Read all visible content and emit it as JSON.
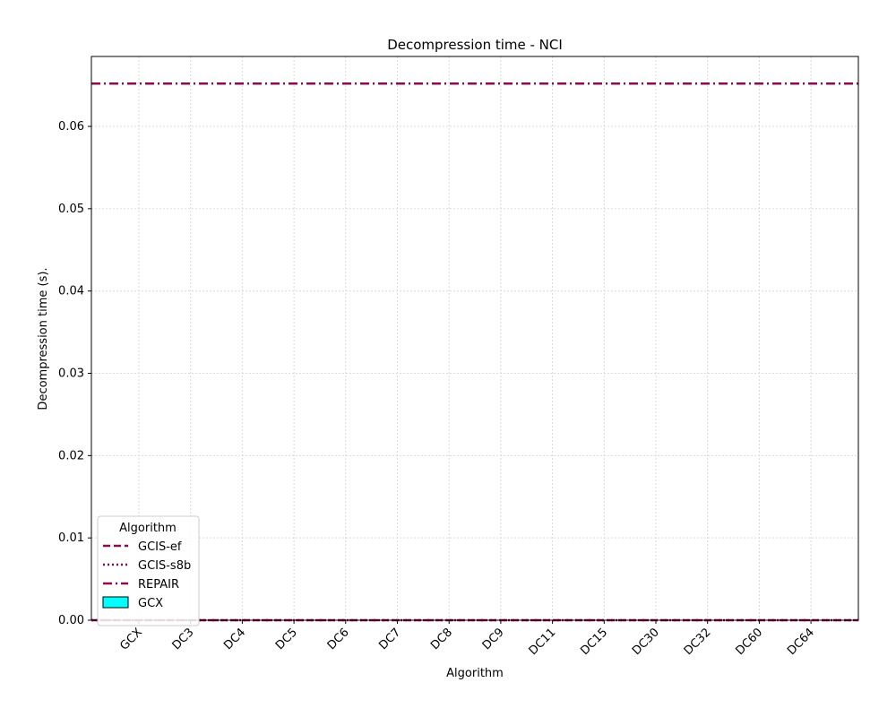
{
  "chart_data": {
    "type": "bar",
    "title": "Decompression time -  NCI",
    "xlabel": "Algorithm",
    "ylabel": "Decompression time (s).",
    "categories": [
      "GCX",
      "DC3",
      "DC4",
      "DC5",
      "DC6",
      "DC7",
      "DC8",
      "DC9",
      "DC11",
      "DC15",
      "DC30",
      "DC32",
      "DC60",
      "DC64"
    ],
    "series": [
      {
        "name": "GCX",
        "values": [
          0,
          0,
          0,
          0,
          0,
          0,
          0,
          0,
          0,
          0,
          0,
          0,
          0,
          0
        ],
        "color": "#00ffff"
      }
    ],
    "reference_lines": [
      {
        "name": "GCIS-ef",
        "value": 0.0,
        "style": "dashed",
        "color": "#8b0a50"
      },
      {
        "name": "GCIS-s8b",
        "value": 0.0,
        "style": "dotted",
        "color": "#8b0a50"
      },
      {
        "name": "REPAIR",
        "value": 0.0652,
        "style": "dashdot",
        "color": "#8b0a50"
      }
    ],
    "ylim": [
      0,
      0.0685
    ],
    "yticks": [
      "0.00",
      "0.01",
      "0.02",
      "0.03",
      "0.04",
      "0.05",
      "0.06"
    ],
    "grid": true,
    "legend": {
      "title": "Algorithm",
      "placement": "lower-left"
    }
  }
}
